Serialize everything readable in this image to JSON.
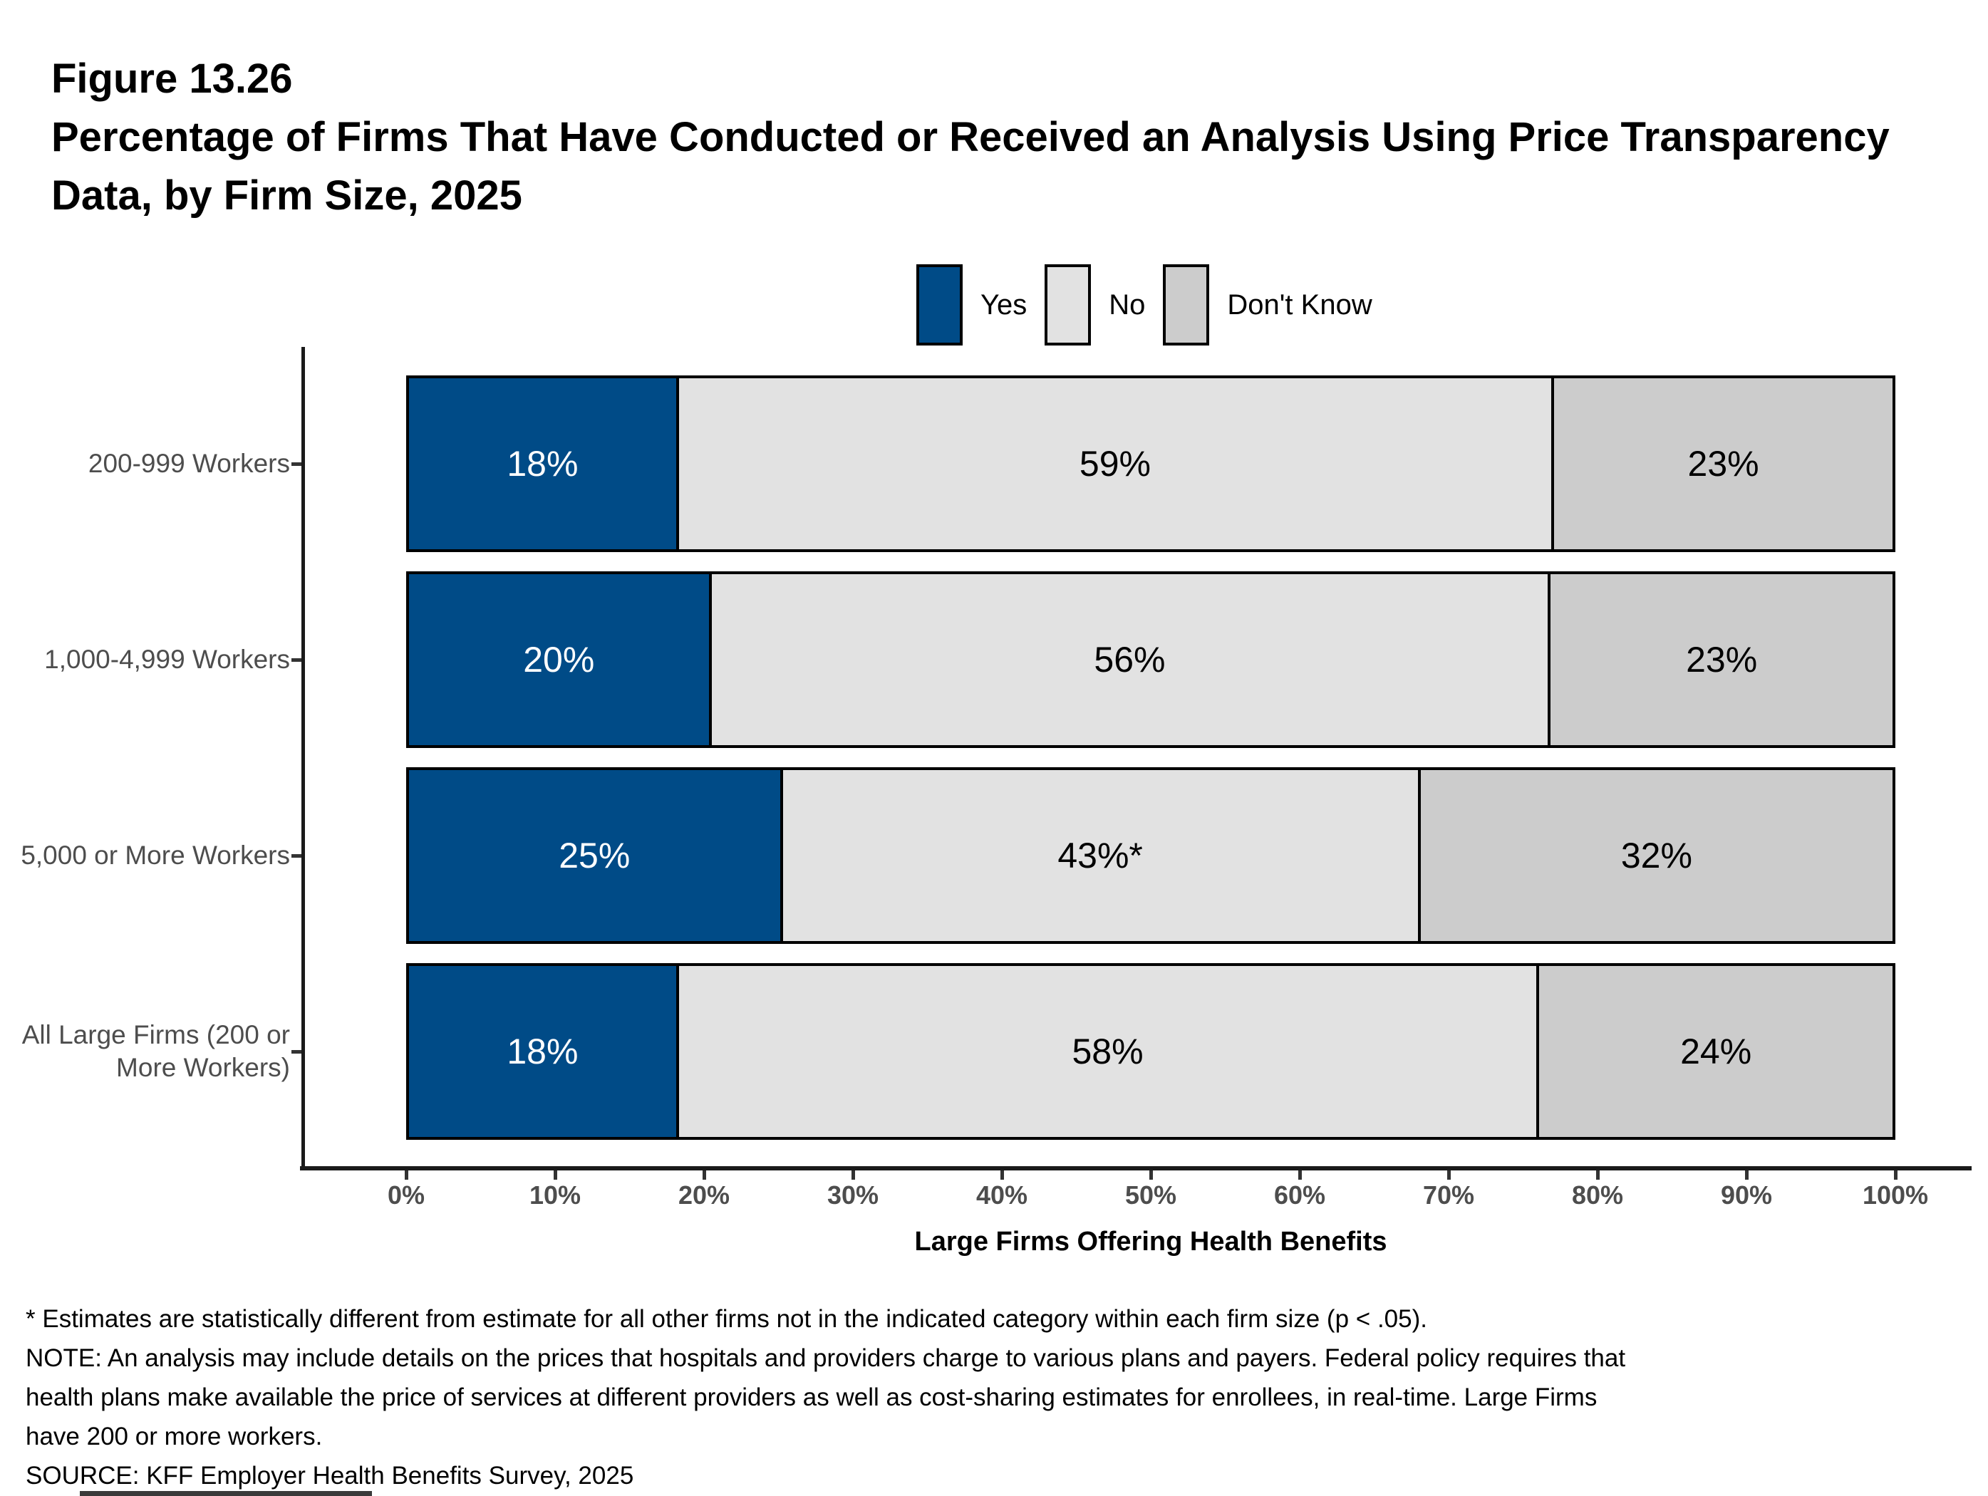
{
  "title": {
    "lines": [
      "Figure 13.26",
      "Percentage of Firms That Have Conducted or Received an Analysis Using Price Transparency",
      "Data, by Firm Size, 2025"
    ]
  },
  "chart_data": {
    "type": "bar",
    "orientation": "horizontal",
    "stacked": true,
    "title": "Percentage of Firms That Have Conducted or Received an Analysis Using Price Transparency Data, by Firm Size, 2025",
    "categories": [
      "200-999 Workers",
      "1,000-4,999 Workers",
      "5,000 or More Workers",
      "All Large Firms (200 or\nMore Workers)"
    ],
    "series": [
      {
        "name": "Yes",
        "color": "#004B87",
        "label_color": "#FFFFFF",
        "values": [
          18,
          20,
          25,
          18
        ],
        "data_labels": [
          "18%",
          "20%",
          "25%",
          "18%"
        ]
      },
      {
        "name": "No",
        "color": "#E2E2E2",
        "label_color": "#000000",
        "values": [
          59,
          56,
          43,
          58
        ],
        "data_labels": [
          "59%",
          "56%",
          "43%*",
          "58%"
        ]
      },
      {
        "name": "Don't Know",
        "color": "#CCCCCC",
        "label_color": "#000000",
        "values": [
          23,
          23,
          32,
          24
        ],
        "data_labels": [
          "23%",
          "23%",
          "32%",
          "24%"
        ]
      }
    ],
    "xlabel": "Large Firms Offering Health Benefits",
    "xlim": [
      0,
      100
    ],
    "x_ticks": [
      "0%",
      "10%",
      "20%",
      "30%",
      "40%",
      "50%",
      "60%",
      "70%",
      "80%",
      "90%",
      "100%"
    ],
    "grid": false,
    "legend_position": "top",
    "bar_border_color": "#000000"
  },
  "footnotes": [
    "* Estimates are statistically different from estimate for all other firms not in the indicated category within each firm size (p < .05).",
    "NOTE: An analysis may include details on the prices that hospitals and providers charge to various plans and payers. Federal policy requires that",
    "health plans make available the price of services at different providers as well as cost-sharing estimates for enrollees, in real-time. Large Firms",
    "have 200 or more workers.",
    "SOURCE: KFF Employer Health Benefits Survey, 2025"
  ]
}
